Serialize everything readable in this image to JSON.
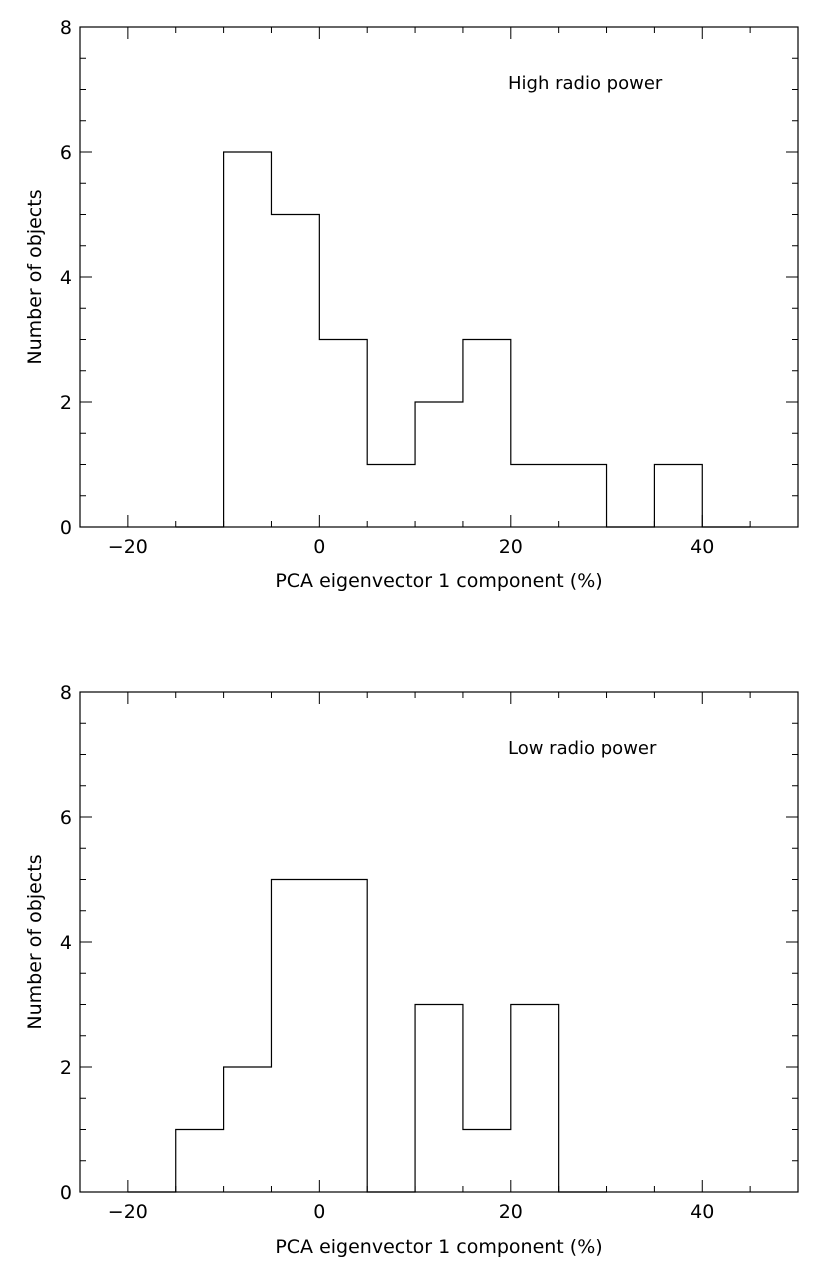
{
  "chart_data": [
    {
      "type": "bar",
      "histogram": true,
      "annotation": "High radio power",
      "xlabel": "PCA eigenvector 1 component (%)",
      "ylabel": "Number of objects",
      "xlim": [
        -25,
        50
      ],
      "ylim": [
        0,
        8
      ],
      "x_ticks": [
        -20,
        0,
        20,
        40
      ],
      "x_tick_labels": [
        "−20",
        "0",
        "20",
        "40"
      ],
      "x_minor_step": 5,
      "y_ticks": [
        0,
        2,
        4,
        6,
        8
      ],
      "y_tick_labels": [
        "0",
        "2",
        "4",
        "6",
        "8"
      ],
      "y_minor_step": 0.5,
      "grid": false,
      "bin_width": 5,
      "bins": [
        {
          "start": -15,
          "count": 0
        },
        {
          "start": -10,
          "count": 6
        },
        {
          "start": -5,
          "count": 5
        },
        {
          "start": 0,
          "count": 3
        },
        {
          "start": 5,
          "count": 1
        },
        {
          "start": 10,
          "count": 2
        },
        {
          "start": 15,
          "count": 3
        },
        {
          "start": 20,
          "count": 1
        },
        {
          "start": 25,
          "count": 1
        },
        {
          "start": 30,
          "count": 0
        },
        {
          "start": 35,
          "count": 1
        },
        {
          "start": 40,
          "count": 0
        }
      ]
    },
    {
      "type": "bar",
      "histogram": true,
      "annotation": "Low radio power",
      "xlabel": "PCA eigenvector 1 component (%)",
      "ylabel": "Number of objects",
      "xlim": [
        -25,
        50
      ],
      "ylim": [
        0,
        8
      ],
      "x_ticks": [
        -20,
        0,
        20,
        40
      ],
      "x_tick_labels": [
        "−20",
        "0",
        "20",
        "40"
      ],
      "x_minor_step": 5,
      "y_ticks": [
        0,
        2,
        4,
        6,
        8
      ],
      "y_tick_labels": [
        "0",
        "2",
        "4",
        "6",
        "8"
      ],
      "y_minor_step": 0.5,
      "grid": false,
      "bin_width": 5,
      "bins": [
        {
          "start": -20,
          "count": 0
        },
        {
          "start": -15,
          "count": 1
        },
        {
          "start": -10,
          "count": 2
        },
        {
          "start": -5,
          "count": 5
        },
        {
          "start": 0,
          "count": 5
        },
        {
          "start": 5,
          "count": 0
        },
        {
          "start": 10,
          "count": 3
        },
        {
          "start": 15,
          "count": 1
        },
        {
          "start": 20,
          "count": 3
        },
        {
          "start": 25,
          "count": 0
        }
      ]
    }
  ]
}
